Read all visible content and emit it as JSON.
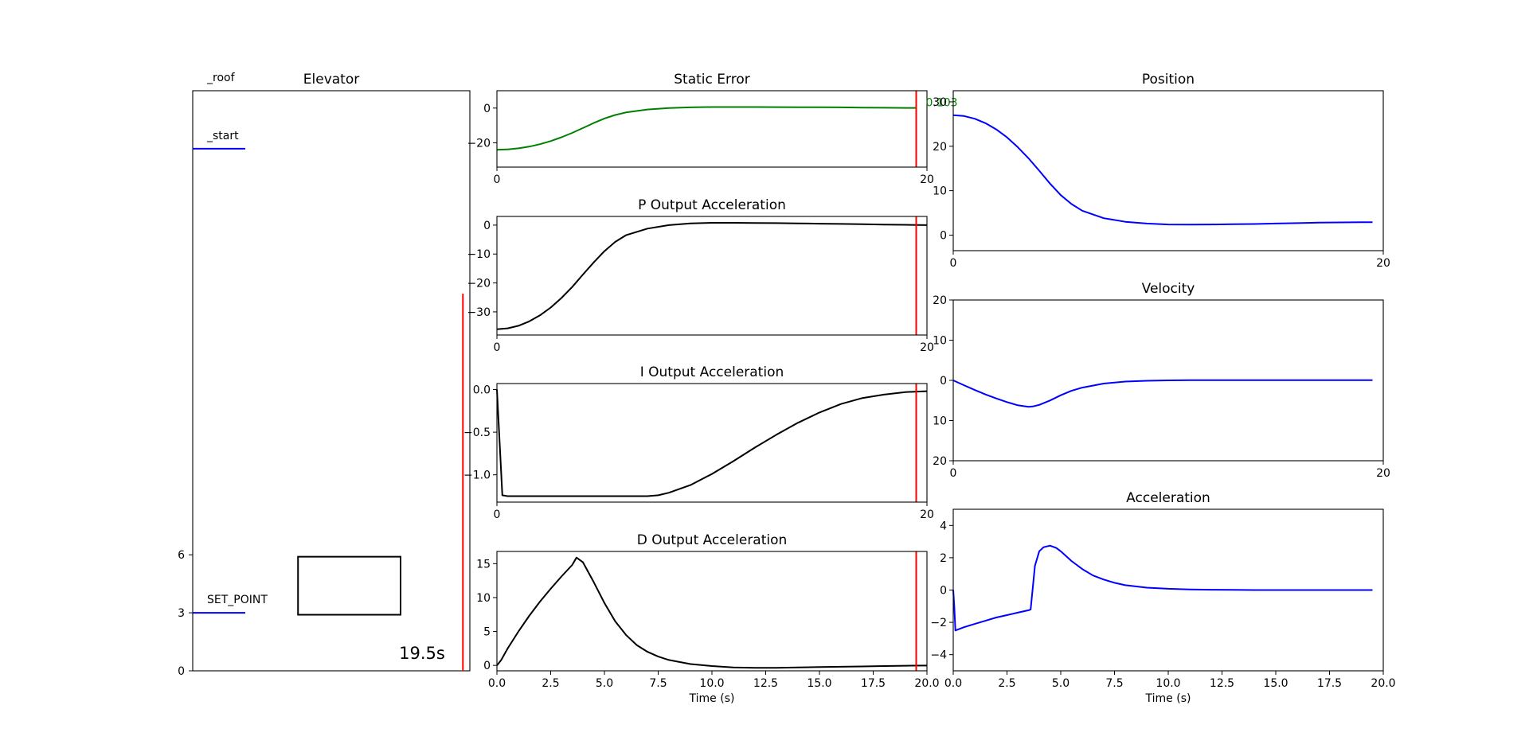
{
  "chart_data": [
    {
      "id": "elevator",
      "type": "scatter",
      "title": "Elevator",
      "xlim": [
        0,
        10
      ],
      "ylim": [
        0,
        30
      ],
      "yticks": [
        0,
        3,
        6
      ],
      "level_labels": [
        {
          "name": "_roof",
          "y": 30
        },
        {
          "name": "_start",
          "y": 27
        },
        {
          "name": "SET_POINT",
          "y": 3
        }
      ],
      "car": {
        "x0": 3.8,
        "x1": 7.5,
        "y0": 2.9,
        "y1": 5.9
      },
      "time_text": "19.5s",
      "marker_x": 9.75,
      "marker_y_top": 19.5,
      "colors": {
        "level": "#0000ff",
        "marker": "#ff0000",
        "car": "#000000"
      }
    },
    {
      "id": "static_error",
      "type": "line",
      "title": "Static Error",
      "xlim": [
        0,
        20
      ],
      "ylim": [
        -34,
        10
      ],
      "xticks": [
        {
          "v": 0,
          "label": "0"
        },
        {
          "v": 20,
          "label": "20"
        }
      ],
      "yticks": [
        {
          "v": 0,
          "label": "0"
        },
        {
          "v": -20,
          "label": "−20"
        }
      ],
      "cursor_x": 19.5,
      "annotation": {
        "text": "0.103",
        "color": "#008000"
      },
      "series": [
        {
          "color": "#008000",
          "x": [
            0,
            0.5,
            1,
            1.5,
            2,
            2.5,
            3,
            3.5,
            4,
            4.5,
            5,
            5.5,
            6,
            7,
            8,
            9,
            10,
            11,
            12,
            13,
            14,
            15,
            16,
            17,
            18,
            19,
            19.5
          ],
          "y": [
            -24,
            -23.8,
            -23.2,
            -22.2,
            -20.8,
            -19,
            -16.8,
            -14.3,
            -11.5,
            -8.6,
            -6,
            -4,
            -2.5,
            -0.8,
            0,
            0.4,
            0.6,
            0.6,
            0.6,
            0.55,
            0.5,
            0.45,
            0.4,
            0.3,
            0.2,
            0.12,
            0.103
          ]
        }
      ]
    },
    {
      "id": "p_output",
      "type": "line",
      "title": "P Output Acceleration",
      "xlim": [
        0,
        20
      ],
      "ylim": [
        -38,
        3
      ],
      "xticks": [
        {
          "v": 0,
          "label": "0"
        },
        {
          "v": 20,
          "label": "20"
        }
      ],
      "yticks": [
        {
          "v": 0,
          "label": "0"
        },
        {
          "v": -10,
          "label": "−10"
        },
        {
          "v": -20,
          "label": "−20"
        },
        {
          "v": -30,
          "label": "−30"
        }
      ],
      "cursor_x": 19.5,
      "series": [
        {
          "color": "#000000",
          "x": [
            0,
            0.5,
            1,
            1.5,
            2,
            2.5,
            3,
            3.5,
            4,
            4.5,
            5,
            5.5,
            6,
            7,
            8,
            9,
            10,
            11,
            12,
            13,
            14,
            15,
            16,
            17,
            18,
            19,
            20
          ],
          "y": [
            -36,
            -35.7,
            -34.8,
            -33.3,
            -31.2,
            -28.5,
            -25.2,
            -21.4,
            -17.1,
            -12.9,
            -9,
            -5.8,
            -3.5,
            -1.2,
            0,
            0.6,
            0.8,
            0.8,
            0.75,
            0.7,
            0.6,
            0.5,
            0.4,
            0.3,
            0.2,
            0.1,
            0.0
          ]
        }
      ]
    },
    {
      "id": "i_output",
      "type": "line",
      "title": "I Output Acceleration",
      "xlim": [
        0,
        20
      ],
      "ylim": [
        -1.32,
        0.07
      ],
      "xticks": [
        {
          "v": 0,
          "label": "0"
        },
        {
          "v": 20,
          "label": "20"
        }
      ],
      "yticks": [
        {
          "v": 0,
          "label": "0.0"
        },
        {
          "v": -0.5,
          "label": "−0.5"
        },
        {
          "v": -1,
          "label": "−1.0"
        }
      ],
      "cursor_x": 19.5,
      "series": [
        {
          "color": "#000000",
          "x": [
            0,
            0.25,
            0.5,
            1,
            3,
            5,
            7,
            7.5,
            8,
            9,
            10,
            11,
            12,
            13,
            14,
            15,
            16,
            17,
            18,
            19,
            20
          ],
          "y": [
            0,
            -1.24,
            -1.25,
            -1.25,
            -1.25,
            -1.25,
            -1.25,
            -1.24,
            -1.21,
            -1.12,
            -0.99,
            -0.84,
            -0.68,
            -0.53,
            -0.39,
            -0.27,
            -0.17,
            -0.1,
            -0.06,
            -0.03,
            -0.02
          ]
        }
      ]
    },
    {
      "id": "d_output",
      "type": "line",
      "title": "D Output Acceleration",
      "xlim": [
        0,
        20
      ],
      "ylim": [
        -0.8,
        16.8
      ],
      "xticks": [
        {
          "v": 0,
          "label": "0.0"
        },
        {
          "v": 2.5,
          "label": "2.5"
        },
        {
          "v": 5,
          "label": "5.0"
        },
        {
          "v": 7.5,
          "label": "7.5"
        },
        {
          "v": 10,
          "label": "10.0"
        },
        {
          "v": 12.5,
          "label": "12.5"
        },
        {
          "v": 15,
          "label": "15.0"
        },
        {
          "v": 17.5,
          "label": "17.5"
        },
        {
          "v": 20,
          "label": "20.0"
        }
      ],
      "yticks": [
        {
          "v": 0,
          "label": "0"
        },
        {
          "v": 5,
          "label": "5"
        },
        {
          "v": 10,
          "label": "10"
        },
        {
          "v": 15,
          "label": "15"
        }
      ],
      "xlabel": "Time (s)",
      "cursor_x": 19.5,
      "series": [
        {
          "color": "#000000",
          "x": [
            0,
            0.2,
            0.5,
            1,
            1.5,
            2,
            2.5,
            3,
            3.5,
            3.7,
            4,
            4.5,
            5,
            5.5,
            6,
            6.5,
            7,
            7.5,
            8,
            9,
            10,
            11,
            12,
            13,
            14,
            15,
            16,
            17,
            18,
            19,
            20
          ],
          "y": [
            0,
            0.8,
            2.5,
            5,
            7.3,
            9.4,
            11.3,
            13.1,
            14.8,
            15.9,
            15.2,
            12.3,
            9.2,
            6.5,
            4.5,
            3,
            2,
            1.3,
            0.8,
            0.2,
            -0.1,
            -0.3,
            -0.35,
            -0.35,
            -0.3,
            -0.25,
            -0.2,
            -0.15,
            -0.1,
            -0.05,
            -0.02
          ]
        }
      ]
    },
    {
      "id": "position",
      "type": "line",
      "title": "Position",
      "xlim": [
        0,
        20
      ],
      "ylim": [
        -3.5,
        32.5
      ],
      "xticks": [
        {
          "v": 0,
          "label": "0"
        },
        {
          "v": 20,
          "label": "20"
        }
      ],
      "yticks": [
        {
          "v": 0,
          "label": "0"
        },
        {
          "v": 10,
          "label": "10"
        },
        {
          "v": 20,
          "label": "20"
        },
        {
          "v": 30,
          "label": "30"
        }
      ],
      "series": [
        {
          "color": "#0000ff",
          "x": [
            0,
            0.5,
            1,
            1.5,
            2,
            2.5,
            3,
            3.5,
            4,
            4.5,
            5,
            5.5,
            6,
            7,
            8,
            9,
            10,
            11,
            12,
            13,
            14,
            15,
            16,
            17,
            18,
            19,
            19.5
          ],
          "y": [
            27,
            26.8,
            26.2,
            25.2,
            23.8,
            22,
            19.8,
            17.3,
            14.5,
            11.6,
            9,
            7,
            5.5,
            3.8,
            3,
            2.6,
            2.4,
            2.35,
            2.4,
            2.45,
            2.5,
            2.6,
            2.7,
            2.8,
            2.85,
            2.9,
            2.9
          ]
        }
      ]
    },
    {
      "id": "velocity",
      "type": "line",
      "title": "Velocity",
      "xlim": [
        0,
        20
      ],
      "ylim": [
        -20,
        20
      ],
      "xticks": [
        {
          "v": 0,
          "label": "0"
        },
        {
          "v": 20,
          "label": "20"
        }
      ],
      "yticks": [
        {
          "v": 20,
          "label": "20"
        },
        {
          "v": 10,
          "label": "10"
        },
        {
          "v": 0,
          "label": "0"
        },
        {
          "v": -10,
          "label": "10"
        },
        {
          "v": -20,
          "label": "20"
        }
      ],
      "series": [
        {
          "color": "#0000ff",
          "x": [
            0,
            0.5,
            1,
            1.5,
            2,
            2.5,
            3,
            3.5,
            3.7,
            4,
            4.5,
            5,
            5.5,
            6,
            7,
            8,
            9,
            10,
            11,
            12,
            13,
            14,
            15,
            16,
            17,
            18,
            19,
            19.5
          ],
          "y": [
            0,
            -1.2,
            -2.4,
            -3.5,
            -4.5,
            -5.4,
            -6.2,
            -6.6,
            -6.5,
            -6.1,
            -5,
            -3.7,
            -2.6,
            -1.8,
            -0.8,
            -0.3,
            -0.1,
            0,
            0.05,
            0.05,
            0.05,
            0.05,
            0.05,
            0.05,
            0.05,
            0.05,
            0.05,
            0.05
          ]
        }
      ]
    },
    {
      "id": "acceleration",
      "type": "line",
      "title": "Acceleration",
      "xlim": [
        0,
        20
      ],
      "ylim": [
        -5,
        5
      ],
      "xticks": [
        {
          "v": 0,
          "label": "0.0"
        },
        {
          "v": 2.5,
          "label": "2.5"
        },
        {
          "v": 5,
          "label": "5.0"
        },
        {
          "v": 7.5,
          "label": "7.5"
        },
        {
          "v": 10,
          "label": "10.0"
        },
        {
          "v": 12.5,
          "label": "12.5"
        },
        {
          "v": 15,
          "label": "15.0"
        },
        {
          "v": 17.5,
          "label": "17.5"
        },
        {
          "v": 20,
          "label": "20.0"
        }
      ],
      "yticks": [
        {
          "v": 4,
          "label": "4"
        },
        {
          "v": 2,
          "label": "2"
        },
        {
          "v": 0,
          "label": "0"
        },
        {
          "v": -2,
          "label": "−2"
        },
        {
          "v": -4,
          "label": "−4"
        }
      ],
      "xlabel": "Time (s)",
      "series": [
        {
          "color": "#0000ff",
          "x": [
            0,
            0.05,
            0.1,
            0.5,
            1,
            1.5,
            2,
            2.5,
            3,
            3.5,
            3.6,
            3.8,
            4,
            4.2,
            4.5,
            4.8,
            5,
            5.5,
            6,
            6.5,
            7,
            7.5,
            8,
            9,
            10,
            11,
            12,
            13,
            14,
            15,
            16,
            17,
            18,
            19,
            19.5
          ],
          "y": [
            0,
            -1,
            -2.5,
            -2.3,
            -2.1,
            -1.9,
            -1.7,
            -1.55,
            -1.4,
            -1.25,
            -1.2,
            1.5,
            2.4,
            2.65,
            2.75,
            2.6,
            2.4,
            1.8,
            1.3,
            0.9,
            0.65,
            0.45,
            0.3,
            0.15,
            0.08,
            0.04,
            0.02,
            0.01,
            0,
            0,
            0,
            0,
            0,
            0,
            0
          ]
        }
      ]
    }
  ]
}
